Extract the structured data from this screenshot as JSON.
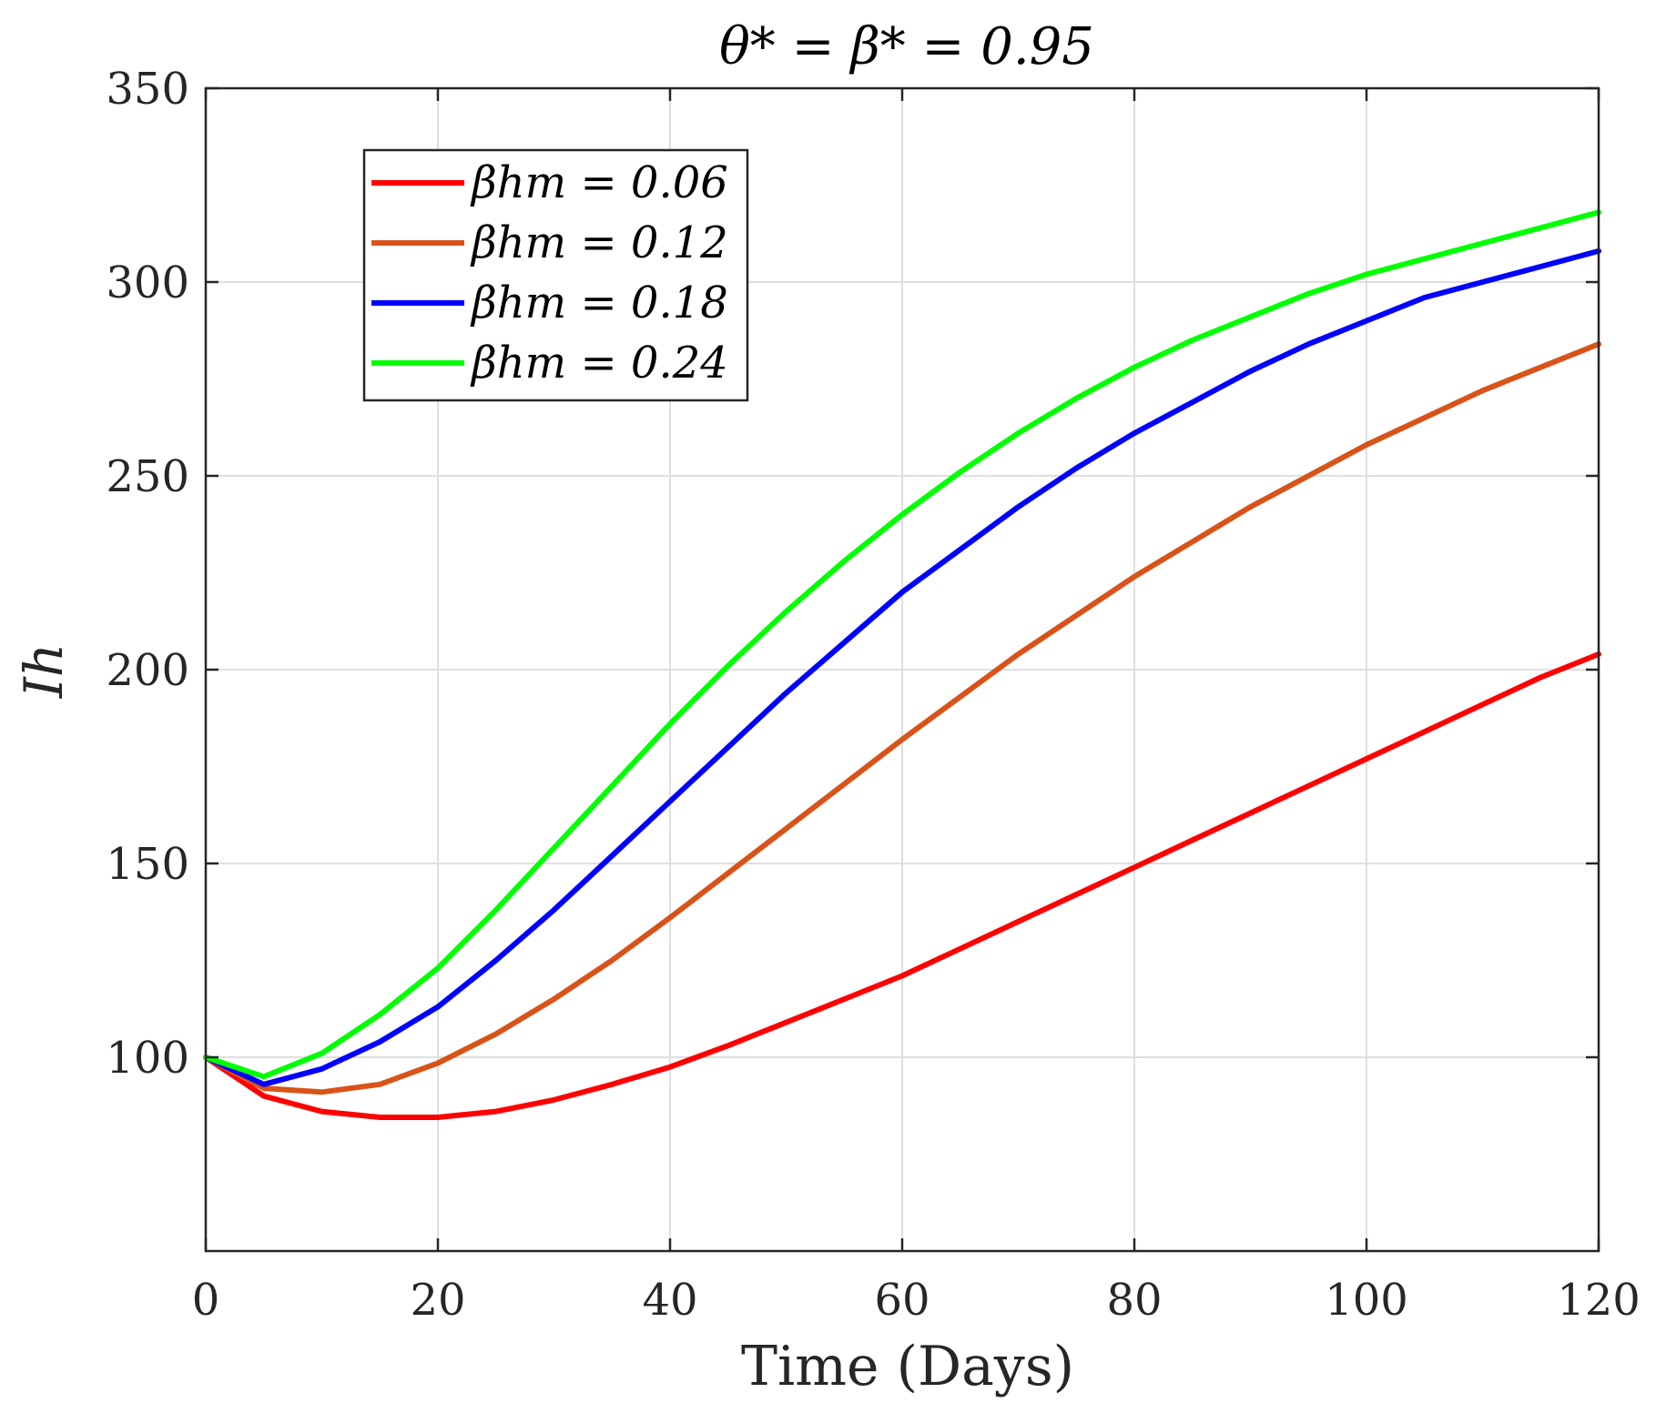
{
  "chart_data": {
    "type": "line",
    "title": "θ* = β* = 0.95",
    "xlabel": "Time (Days)",
    "ylabel": "Ih",
    "xlim": [
      0,
      120
    ],
    "ylim": [
      50,
      350
    ],
    "xticks": [
      0,
      20,
      40,
      60,
      80,
      100,
      120
    ],
    "yticks": [
      100,
      150,
      200,
      250,
      300,
      350
    ],
    "grid": true,
    "legend_position": "top-left",
    "x": [
      0,
      5,
      10,
      15,
      20,
      25,
      30,
      35,
      40,
      45,
      50,
      55,
      60,
      65,
      70,
      75,
      80,
      85,
      90,
      95,
      100,
      105,
      110,
      115,
      120
    ],
    "series": [
      {
        "name": "βhm = 0.06",
        "color": "#ff0000",
        "values": [
          100,
          90,
          86,
          84.5,
          84.5,
          86,
          89,
          93,
          97.5,
          103,
          109,
          115,
          121,
          128,
          135,
          142,
          149,
          156,
          163,
          170,
          177,
          184,
          191,
          198,
          204
        ]
      },
      {
        "name": "βhm = 0.12",
        "color": "#d95319",
        "values": [
          100,
          92,
          91,
          93,
          98.5,
          106,
          115,
          125,
          136,
          147.5,
          159,
          170.5,
          182,
          193,
          204,
          214,
          224,
          233,
          242,
          250,
          258,
          265,
          272,
          278,
          284
        ]
      },
      {
        "name": "βhm = 0.18",
        "color": "#0000ff",
        "values": [
          100,
          93,
          97,
          104,
          113,
          125,
          138,
          152,
          166,
          180,
          194,
          207,
          220,
          231,
          242,
          252,
          261,
          269,
          277,
          284,
          290,
          296,
          300,
          304,
          308
        ]
      },
      {
        "name": "βhm = 0.24",
        "color": "#00ff00",
        "values": [
          100,
          95,
          101,
          111,
          123,
          138,
          154,
          170,
          186,
          201,
          215,
          228,
          240,
          251,
          261,
          270,
          278,
          285,
          291,
          297,
          302,
          306,
          310,
          314,
          318
        ]
      }
    ]
  }
}
